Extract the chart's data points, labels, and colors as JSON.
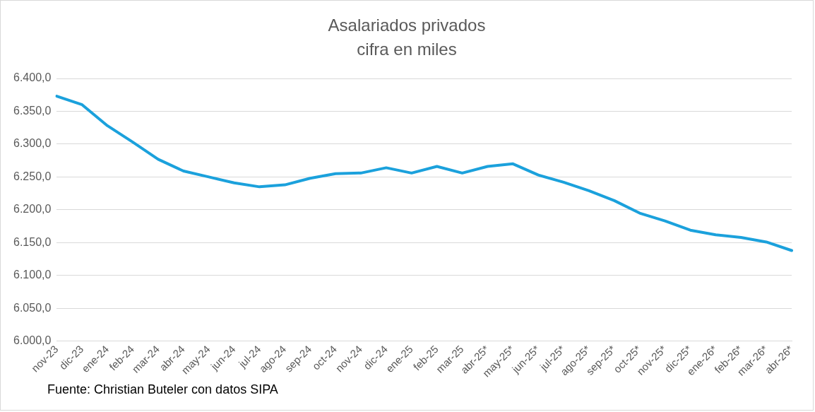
{
  "chart_data": {
    "type": "line",
    "title": "Asalariados privados",
    "subtitle": "cifra en miles",
    "categories": [
      "nov-23",
      "dic-23",
      "ene-24",
      "feb-24",
      "mar-24",
      "abr-24",
      "may-24",
      "jun-24",
      "jul-24",
      "ago-24",
      "sep-24",
      "oct-24",
      "nov-24",
      "dic-24",
      "ene-25",
      "feb-25",
      "mar-25",
      "abr-25*",
      "may-25*",
      "jun-25*",
      "jul-25*",
      "ago-25*",
      "sep-25*",
      "oct-25*",
      "nov-25*",
      "dic-25*",
      "ene-26*",
      "feb-26*",
      "mar-26*",
      "abr-26*"
    ],
    "series": [
      {
        "color": "#1ba1dc",
        "values": [
          6373,
          6360,
          6328,
          6303,
          6277,
          6259,
          6250,
          6241,
          6235,
          6238,
          6248,
          6255,
          6256,
          6264,
          6256,
          6266,
          6256,
          6266,
          6270,
          6253,
          6242,
          6229,
          6214,
          6195,
          6183,
          6169,
          6162,
          6158,
          6151,
          6138
        ]
      }
    ],
    "ylim": [
      6000,
      6400
    ],
    "yticks": [
      {
        "value": 6000,
        "label": "6.000,0"
      },
      {
        "value": 6050,
        "label": "6.050,0"
      },
      {
        "value": 6100,
        "label": "6.100,0"
      },
      {
        "value": 6150,
        "label": "6.150,0"
      },
      {
        "value": 6200,
        "label": "6.200,0"
      },
      {
        "value": 6250,
        "label": "6.250,0"
      },
      {
        "value": 6300,
        "label": "6.300,0"
      },
      {
        "value": 6350,
        "label": "6.350,0"
      },
      {
        "value": 6400,
        "label": "6.400,0"
      }
    ],
    "grid": "y",
    "legend": false,
    "marker": "none",
    "line_style": "solid",
    "annotations": [
      "Fuente: Christian Buteler con datos SIPA"
    ]
  }
}
